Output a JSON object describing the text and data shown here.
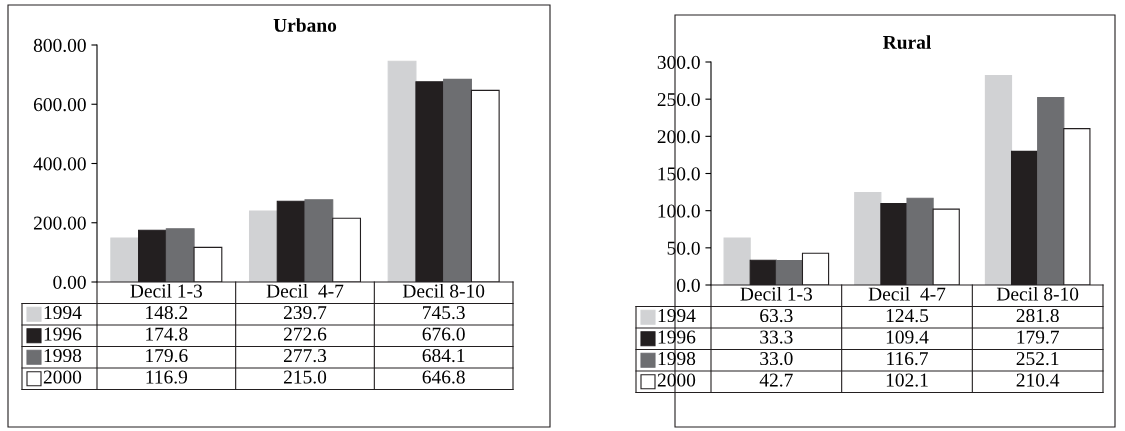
{
  "chart_data": [
    {
      "type": "bar",
      "title": "Urbano",
      "categories": [
        "Decil 1-3",
        "Decil  4-7",
        "Decil 8-10"
      ],
      "series": [
        {
          "name": "1994",
          "color": "#d1d2d4",
          "values": [
            148.2,
            239.7,
            745.3
          ],
          "value_labels": [
            "148.2",
            "239.7",
            "745.3"
          ]
        },
        {
          "name": "1996",
          "color": "#231f20",
          "values": [
            174.8,
            272.6,
            676.0
          ],
          "value_labels": [
            "174.8",
            "272.6",
            "676.0"
          ]
        },
        {
          "name": "1998",
          "color": "#6d6e71",
          "values": [
            179.6,
            277.3,
            684.1
          ],
          "value_labels": [
            "179.6",
            "277.3",
            "684.1"
          ]
        },
        {
          "name": "2000",
          "color": "#ffffff",
          "values": [
            116.9,
            215.0,
            646.8
          ],
          "value_labels": [
            "116.9",
            "215.0",
            "646.8"
          ]
        }
      ],
      "ylim": [
        0,
        800
      ],
      "legend": "bottom",
      "yticks": [
        {
          "value": 0,
          "label": "0.00"
        },
        {
          "value": 200,
          "label": "200.00"
        },
        {
          "value": 400,
          "label": "400.00"
        },
        {
          "value": 600,
          "label": "600.00"
        },
        {
          "value": 800,
          "label": "800.00"
        }
      ],
      "grid": false
    },
    {
      "type": "bar",
      "title": "Rural",
      "categories": [
        "Decil 1-3",
        "Decil  4-7",
        "Decil 8-10"
      ],
      "series": [
        {
          "name": "1994",
          "color": "#d1d2d4",
          "values": [
            63.3,
            124.5,
            281.8
          ],
          "value_labels": [
            "63.3",
            "124.5",
            "281.8"
          ]
        },
        {
          "name": "1996",
          "color": "#231f20",
          "values": [
            33.3,
            109.4,
            179.7
          ],
          "value_labels": [
            "33.3",
            "109.4",
            "179.7"
          ]
        },
        {
          "name": "1998",
          "color": "#6d6e71",
          "values": [
            33.0,
            116.7,
            252.1
          ],
          "value_labels": [
            "33.0",
            "116.7",
            "252.1"
          ]
        },
        {
          "name": "2000",
          "color": "#ffffff",
          "values": [
            42.7,
            102.1,
            210.4
          ],
          "value_labels": [
            "42.7",
            "102.1",
            "210.4"
          ]
        }
      ],
      "ylim": [
        0,
        300
      ],
      "legend": "bottom",
      "yticks": [
        {
          "value": 0,
          "label": "0.0"
        },
        {
          "value": 50,
          "label": "50.0"
        },
        {
          "value": 100,
          "label": "100.0"
        },
        {
          "value": 150,
          "label": "150.0"
        },
        {
          "value": 200,
          "label": "200.0"
        },
        {
          "value": 250,
          "label": "250.0"
        },
        {
          "value": 300,
          "label": "300.0"
        }
      ],
      "grid": false
    }
  ]
}
